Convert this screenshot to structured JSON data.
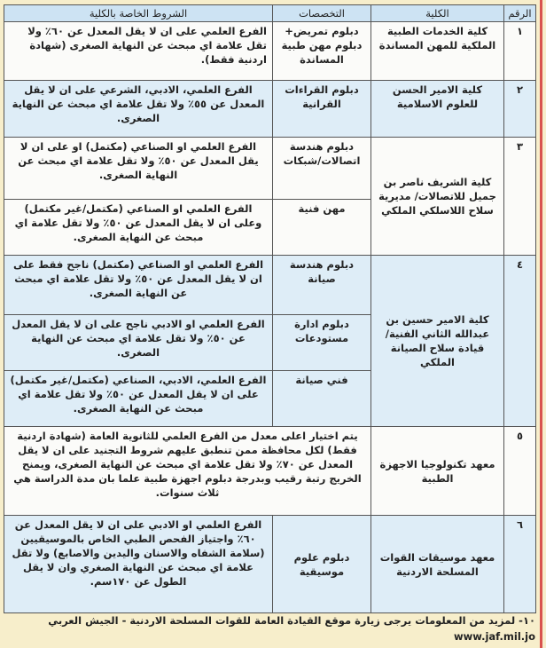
{
  "headers": {
    "rank": "الرقم",
    "college": "الكلية",
    "specialties": "التخصصات",
    "conditions": "الشروط الخاصة بالكلية"
  },
  "rows": [
    {
      "rank": "١",
      "college": "كلية الخدمات الطبية الملكية للمهن المساندة",
      "items": [
        {
          "spec": "دبلوم تمريض+ دبلوم مهن طبية المساندة",
          "cond": "الفرع العلمي على ان لا يقل المعدل عن ٦٠٪ ولا تقل علامة اي مبحث عن النهاية الصغرى (شهادة اردنية فقط)."
        }
      ]
    },
    {
      "rank": "٢",
      "college": "كلية الامير الحسن للعلوم الاسلامية",
      "items": [
        {
          "spec": "دبلوم القراءات القرانية",
          "cond": "الفرع العلمي، الادبي، الشرعي على ان لا يقل المعدل عن ٥٥٪ ولا تقل علامة اي مبحث عن النهاية الصغرى."
        }
      ]
    },
    {
      "rank": "٣",
      "college": "كلية الشريف ناصر بن جميل للاتصالات/ مديرية سلاح اللاسلكي الملكي",
      "items": [
        {
          "spec": "دبلوم هندسة اتصالات/شبكات",
          "cond": "الفرع العلمي او الصناعي (مكتمل) او على ان لا يقل المعدل عن ٥٠٪ ولا تقل علامة اي مبحث عن النهاية الصغرى."
        },
        {
          "spec": "مهن فنية",
          "cond": "الفرع العلمي او الصناعي (مكتمل/غير مكتمل) وعلى ان لا يقل المعدل عن ٥٠٪ ولا تقل علامة اي مبحث عن النهاية الصغرى."
        }
      ]
    },
    {
      "rank": "٤",
      "college": "كلية الامير حسين بن عبدالله الثاني الفنية/ قيادة سلاح الصيانة الملكي",
      "items": [
        {
          "spec": "دبلوم هندسة صيانة",
          "cond": "الفرع العلمي او الصناعي (مكتمل) ناجح فقط على ان لا يقل المعدل عن ٥٠٪ ولا تقل علامة اي مبحث عن النهاية الصغرى."
        },
        {
          "spec": "دبلوم ادارة مستودعات",
          "cond": "الفرع العلمي او الادبي ناجح على ان لا يقل المعدل عن ٥٠٪ ولا تقل علامة اي مبحث عن النهاية الصغرى."
        },
        {
          "spec": "فني صيانة",
          "cond": "الفرع العلمي، الادبي، الصناعي (مكتمل/غير مكتمل) على ان لا يقل المعدل عن ٥٠٪ ولا تقل علامة اي مبحث عن النهاية الصغرى."
        }
      ]
    },
    {
      "rank": "٥",
      "college": "معهد تكنولوجيا الاجهزة الطبية",
      "items": [
        {
          "spec": "",
          "cond": "يتم اختيار اعلى معدل من الفرع العلمي للثانوية العامة (شهادة اردنية فقط) لكل محافظة ممن تنطبق عليهم شروط التجنيد على ان لا يقل المعدل عن ٧٠٪ ولا تقل علامة اي مبحث عن النهاية الصغرى، ويمنح الخريج رتبة رقيب وبدرجة دبلوم اجهزة طبية علما بان مدة الدراسة هي ثلاث سنوات."
        }
      ]
    },
    {
      "rank": "٦",
      "college": "معهد موسيقات القوات المسلحة الاردنية",
      "items": [
        {
          "spec": "دبلوم علوم موسيقية",
          "cond": "الفرع العلمي او الادبي على ان لا يقل المعدل عن ٦٠٪ واجتياز الفحص الطبي الخاص بالموسيقيين (سلامة الشفاه والاسنان واليدين والاصابع) ولا تقل علامة اي مبحث عن النهاية الصغري وان لا يقل الطول عن ١٧٠سم."
        }
      ]
    }
  ],
  "footnote": "١٠- لمزيد من المعلومات يرجى زيارة موقع القيادة العامة للقوات المسلحة الاردنية - الجيش العربي www.jaf.mil.jo"
}
